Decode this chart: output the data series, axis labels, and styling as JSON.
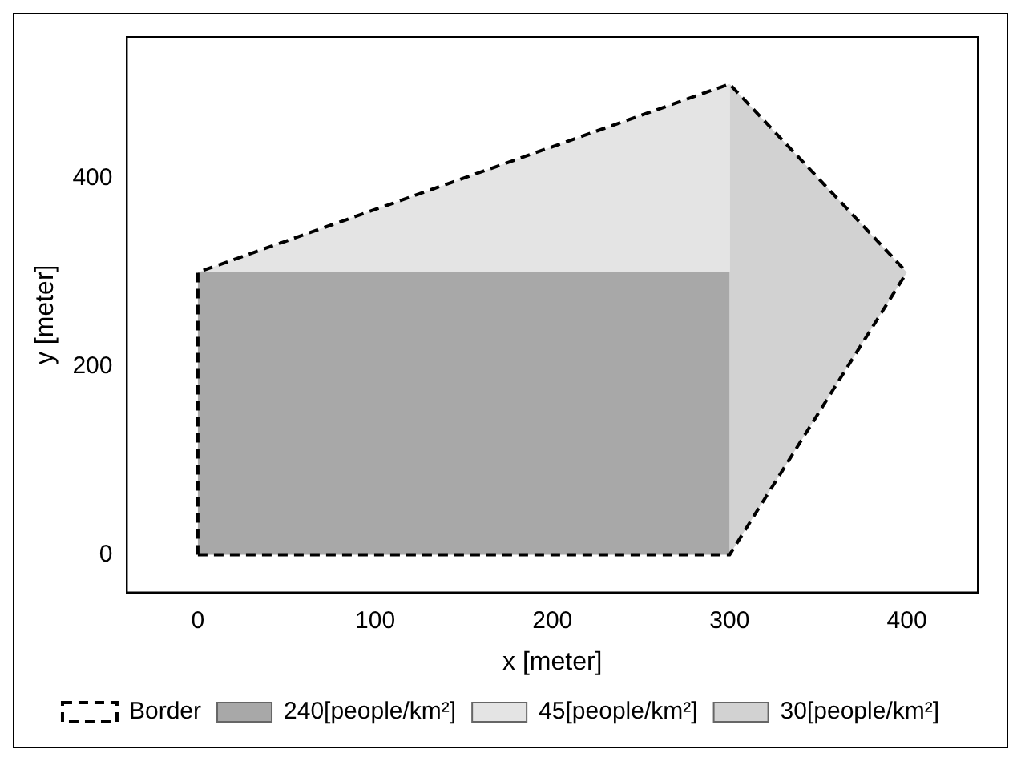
{
  "chart_data": {
    "type": "line",
    "xlabel": "x [meter]",
    "ylabel": "y [meter]",
    "xlim": [
      -40,
      440
    ],
    "ylim": [
      -40,
      550
    ],
    "xticks": [
      0,
      100,
      200,
      300,
      400
    ],
    "yticks": [
      0,
      200,
      400
    ],
    "grid": false,
    "legend": "bottom",
    "marker": "none",
    "series": [
      {
        "name": "Border",
        "type": "line",
        "line_style": "dashed",
        "color": "#000000",
        "x": [
          0,
          0,
          300,
          400
        ],
        "values": [
          0,
          300,
          500,
          300
        ]
      },
      {
        "type": "line",
        "line_style": "dashed",
        "color": "#000000",
        "x": [
          0,
          300,
          400
        ],
        "values": [
          0,
          0,
          300
        ]
      },
      {
        "name": "240[people/km²]",
        "type": "area",
        "color": "#a8a8a8",
        "x": [
          0,
          0,
          300,
          300,
          0
        ],
        "values": [
          0,
          300,
          300,
          0,
          0
        ]
      },
      {
        "name": "45[people/km²]",
        "type": "area",
        "color": "#e4e4e4",
        "x": [
          0,
          300,
          300,
          0
        ],
        "values": [
          300,
          500,
          300,
          300
        ]
      },
      {
        "name": "30[people/km²]",
        "type": "area",
        "color": "#d2d2d2",
        "x": [
          300,
          300,
          400,
          300
        ],
        "values": [
          0,
          500,
          300,
          0
        ]
      }
    ]
  }
}
